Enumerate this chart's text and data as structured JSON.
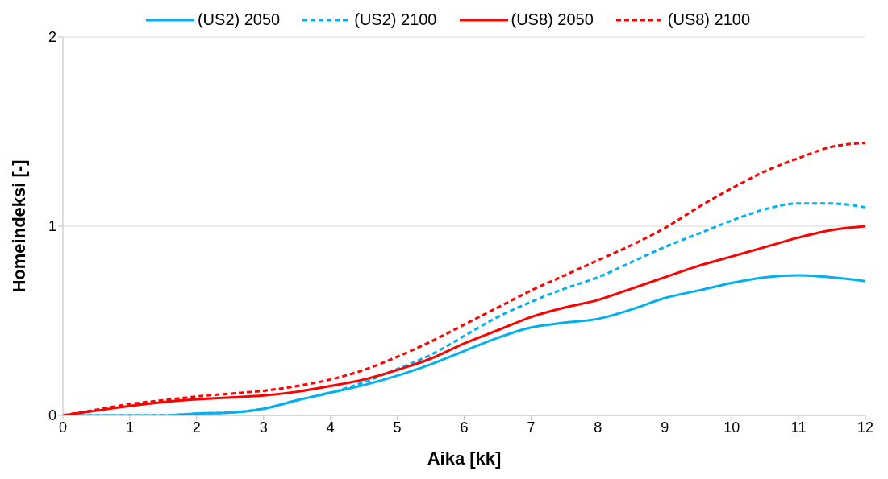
{
  "chart_data": {
    "type": "line",
    "xlabel": "Aika [kk]",
    "ylabel": "Homeindeksi [-]",
    "x": [
      0,
      0.5,
      1,
      1.5,
      2,
      2.5,
      3,
      3.5,
      4,
      4.5,
      5,
      5.5,
      6,
      6.5,
      7,
      7.5,
      8,
      8.5,
      9,
      9.5,
      10,
      10.5,
      11,
      11.5,
      12
    ],
    "series": [
      {
        "name": "(US2) 2050",
        "color": "#00b0f0",
        "line_style": "solid",
        "values": [
          0,
          0,
          0,
          0,
          0.01,
          0.015,
          0.035,
          0.08,
          0.12,
          0.16,
          0.21,
          0.27,
          0.34,
          0.41,
          0.465,
          0.49,
          0.51,
          0.56,
          0.62,
          0.66,
          0.7,
          0.73,
          0.74,
          0.73,
          0.71
        ]
      },
      {
        "name": "(US2) 2100",
        "color": "#00b0f0",
        "line_style": "dashed",
        "values": [
          0,
          0,
          0,
          0,
          0.01,
          0.015,
          0.035,
          0.08,
          0.12,
          0.175,
          0.245,
          0.32,
          0.42,
          0.52,
          0.6,
          0.67,
          0.73,
          0.81,
          0.89,
          0.96,
          1.03,
          1.09,
          1.12,
          1.12,
          1.1
        ]
      },
      {
        "name": "(US8) 2050",
        "color": "#ff0000",
        "line_style": "solid",
        "values": [
          0,
          0.025,
          0.05,
          0.07,
          0.085,
          0.095,
          0.105,
          0.125,
          0.155,
          0.19,
          0.24,
          0.3,
          0.38,
          0.45,
          0.52,
          0.57,
          0.61,
          0.67,
          0.73,
          0.79,
          0.84,
          0.89,
          0.94,
          0.98,
          1
        ]
      },
      {
        "name": "(US8) 2100",
        "color": "#ff0000",
        "line_style": "dashed",
        "values": [
          0,
          0.03,
          0.06,
          0.08,
          0.1,
          0.115,
          0.13,
          0.155,
          0.19,
          0.24,
          0.31,
          0.39,
          0.48,
          0.57,
          0.66,
          0.74,
          0.82,
          0.9,
          0.99,
          1.1,
          1.2,
          1.29,
          1.36,
          1.42,
          1.44
        ]
      }
    ],
    "xlim": [
      0,
      12
    ],
    "xticks": [
      0,
      1,
      2,
      3,
      4,
      5,
      6,
      7,
      8,
      9,
      10,
      11,
      12
    ],
    "ylim": [
      0,
      2
    ],
    "yticks": [
      0,
      1,
      2
    ],
    "grid": "y",
    "legend": "top",
    "marker": "none"
  }
}
